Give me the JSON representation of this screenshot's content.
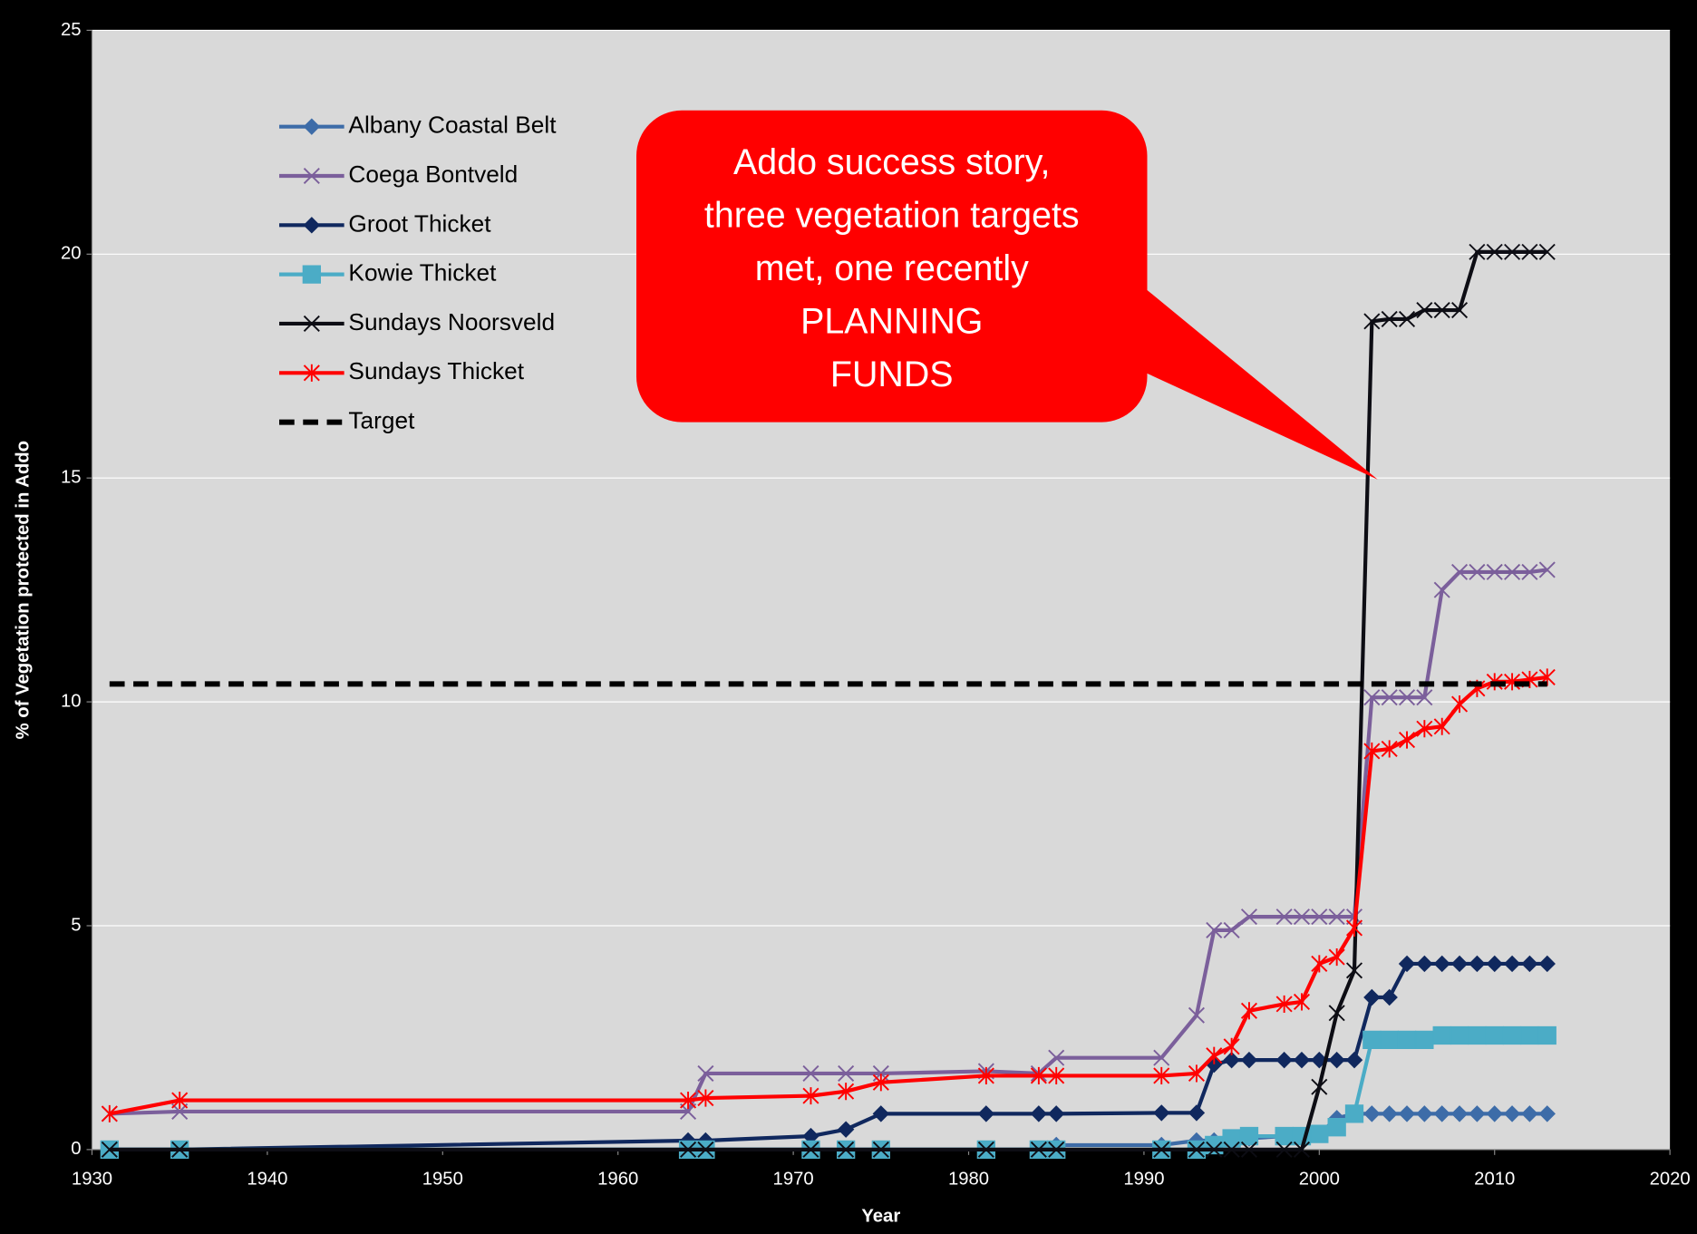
{
  "chart_data": {
    "type": "line",
    "x_label": "Year",
    "y_label": "% of Vegetation protected in Addo",
    "annotation": [
      "Addo success story,",
      "three vegetation targets",
      "met, one recently",
      "PLANNING",
      "FUNDS"
    ],
    "xlim": [
      1930,
      2020
    ],
    "xticks": [
      1930,
      1940,
      1950,
      1960,
      1970,
      1980,
      1990,
      2000,
      2010,
      2020
    ],
    "ylim": [
      0,
      25
    ],
    "yticks": [
      0,
      5,
      10,
      15,
      20,
      25
    ],
    "grid": true,
    "legend": "upper left",
    "x": [
      1931,
      1935,
      1964,
      1965,
      1971,
      1973,
      1975,
      1981,
      1984,
      1985,
      1991,
      1993,
      1994,
      1995,
      1996,
      1998,
      1999,
      2000,
      2001,
      2002,
      2003,
      2004,
      2005,
      2006,
      2007,
      2008,
      2009,
      2010,
      2011,
      2012,
      2013
    ],
    "series": [
      {
        "name": "Albany Coastal Belt",
        "color": "#3d6ca8",
        "marker": "diamond",
        "values": [
          0,
          0,
          0,
          0,
          0,
          0,
          0,
          0,
          0,
          0.1,
          0.1,
          0.2,
          0.2,
          0.2,
          0.25,
          0.3,
          0.3,
          0.35,
          0.7,
          0.8,
          0.8,
          0.8,
          0.8,
          0.8,
          0.8,
          0.8,
          0.8,
          0.8,
          0.8,
          0.8,
          0.8
        ]
      },
      {
        "name": "Coega Bontveld",
        "color": "#7b5f9b",
        "marker": "x",
        "values": [
          0.8,
          0.85,
          0.85,
          1.7,
          1.7,
          1.7,
          1.7,
          1.75,
          1.7,
          2.05,
          2.05,
          3.0,
          4.9,
          4.9,
          5.2,
          5.2,
          5.2,
          5.2,
          5.2,
          5.2,
          10.1,
          10.1,
          10.1,
          10.1,
          12.5,
          12.9,
          12.9,
          12.9,
          12.9,
          12.9,
          12.95
        ]
      },
      {
        "name": "Groot Thicket",
        "color": "#10285e",
        "marker": "diamond",
        "values": [
          0,
          0,
          0.2,
          0.2,
          0.3,
          0.45,
          0.8,
          0.8,
          0.8,
          0.8,
          0.82,
          0.82,
          1.9,
          2.0,
          2.0,
          2.0,
          2.0,
          2.0,
          2.0,
          2.0,
          3.4,
          3.4,
          4.15,
          4.15,
          4.15,
          4.15,
          4.15,
          4.15,
          4.15,
          4.15,
          4.15
        ]
      },
      {
        "name": "Kowie Thicket",
        "color": "#4bacc6",
        "marker": "square",
        "values": [
          0,
          0,
          0,
          0,
          0,
          0,
          0,
          0,
          0,
          0,
          0,
          0,
          0.1,
          0.25,
          0.3,
          0.3,
          0.3,
          0.35,
          0.5,
          0.8,
          2.45,
          2.45,
          2.45,
          2.45,
          2.55,
          2.55,
          2.55,
          2.55,
          2.55,
          2.55,
          2.55
        ]
      },
      {
        "name": "Sundays Noorsveld",
        "color": "#0d0d14",
        "marker": "x",
        "values": [
          0,
          0,
          0,
          0,
          0,
          0,
          0,
          0,
          0,
          0,
          0,
          0,
          0,
          0,
          0,
          0,
          0,
          1.4,
          3.05,
          4.0,
          18.5,
          18.55,
          18.55,
          18.75,
          18.75,
          18.75,
          20.05,
          20.05,
          20.05,
          20.05,
          20.05
        ]
      },
      {
        "name": "Sundays Thicket",
        "color": "#ff0000",
        "marker": "star",
        "values": [
          0.8,
          1.1,
          1.1,
          1.15,
          1.2,
          1.3,
          1.5,
          1.65,
          1.65,
          1.65,
          1.65,
          1.7,
          2.1,
          2.3,
          3.1,
          3.25,
          3.3,
          4.15,
          4.3,
          4.95,
          8.9,
          8.95,
          9.15,
          9.4,
          9.45,
          9.95,
          10.3,
          10.45,
          10.45,
          10.5,
          10.55
        ]
      },
      {
        "name": "Target",
        "color": "#000000",
        "dashed": true,
        "x": [
          1931,
          2013
        ],
        "values": [
          10.4,
          10.4
        ]
      }
    ]
  }
}
